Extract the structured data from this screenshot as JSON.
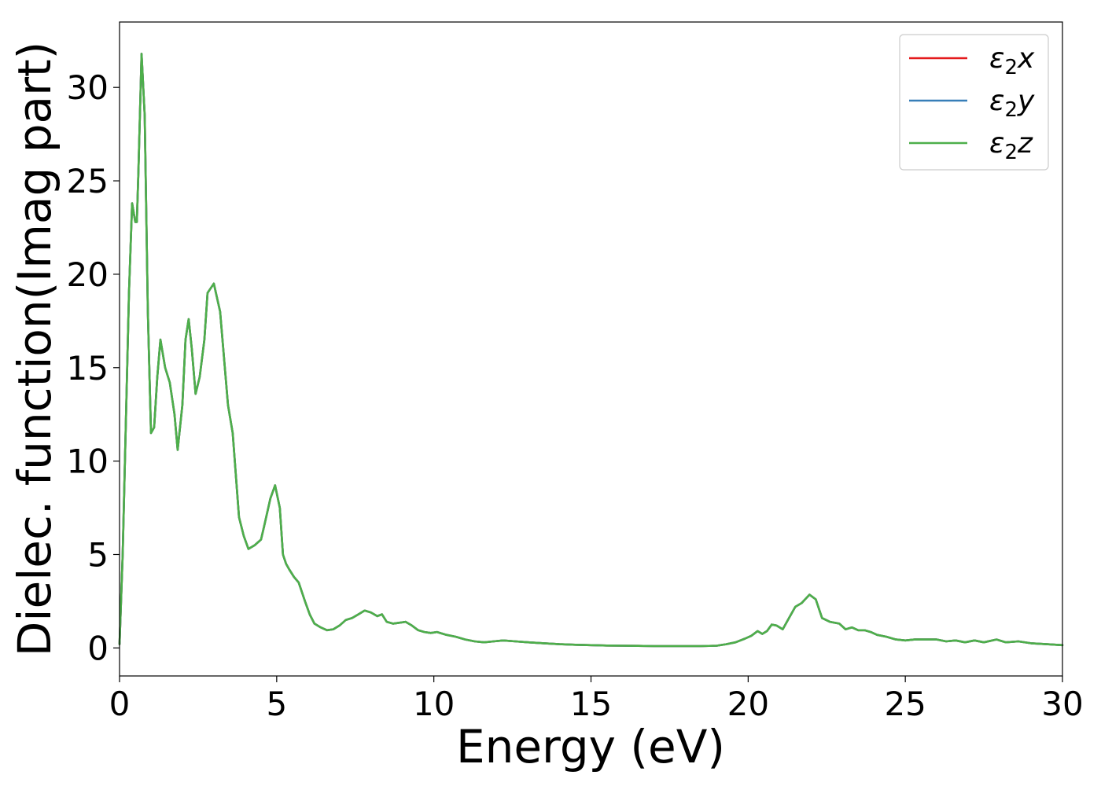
{
  "chart_data": {
    "type": "line",
    "title": "",
    "xlabel": "Energy (eV)",
    "ylabel": "Dielec. function(Imag part)",
    "xlim": [
      0,
      30
    ],
    "ylim": [
      -1.5,
      33.5
    ],
    "xticks": [
      0,
      5,
      10,
      15,
      20,
      25,
      30
    ],
    "yticks": [
      0,
      5,
      10,
      15,
      20,
      25,
      30
    ],
    "grid": false,
    "legend_position": "top-right",
    "legend": [
      {
        "base": "ε",
        "sub": "2",
        "suffix": "x"
      },
      {
        "base": "ε",
        "sub": "2",
        "suffix": "y"
      },
      {
        "base": "ε",
        "sub": "2",
        "suffix": "z"
      }
    ],
    "x": [
      0.0,
      0.1,
      0.2,
      0.3,
      0.4,
      0.5,
      0.55,
      0.6,
      0.7,
      0.8,
      0.9,
      1.0,
      1.1,
      1.2,
      1.3,
      1.45,
      1.6,
      1.75,
      1.85,
      2.0,
      2.1,
      2.2,
      2.3,
      2.42,
      2.55,
      2.7,
      2.8,
      3.0,
      3.2,
      3.35,
      3.45,
      3.6,
      3.8,
      3.95,
      4.1,
      4.3,
      4.5,
      4.6,
      4.8,
      4.95,
      5.1,
      5.2,
      5.3,
      5.4,
      5.55,
      5.7,
      5.9,
      6.05,
      6.2,
      6.4,
      6.6,
      6.8,
      7.0,
      7.2,
      7.4,
      7.6,
      7.8,
      8.0,
      8.2,
      8.35,
      8.5,
      8.7,
      8.9,
      9.1,
      9.3,
      9.5,
      9.7,
      9.9,
      10.1,
      10.4,
      10.7,
      11.0,
      11.3,
      11.6,
      11.9,
      12.2,
      12.6,
      13.0,
      13.5,
      14.0,
      14.5,
      15.0,
      15.5,
      16.0,
      16.5,
      17.0,
      17.5,
      18.0,
      18.5,
      19.0,
      19.3,
      19.6,
      19.9,
      20.1,
      20.3,
      20.45,
      20.6,
      20.75,
      20.9,
      21.1,
      21.3,
      21.5,
      21.7,
      21.95,
      22.15,
      22.35,
      22.6,
      22.9,
      23.1,
      23.3,
      23.5,
      23.7,
      23.9,
      24.1,
      24.4,
      24.7,
      25.0,
      25.3,
      25.6,
      26.0,
      26.3,
      26.6,
      26.9,
      27.2,
      27.5,
      27.9,
      28.2,
      28.6,
      29.0,
      29.5,
      30.0
    ],
    "series": [
      {
        "name": "ε2x",
        "color": "#e41a1c",
        "values": [
          0.2,
          5.0,
          12.0,
          19.0,
          23.8,
          22.8,
          22.8,
          25.5,
          31.8,
          28.5,
          18.0,
          11.5,
          11.8,
          14.5,
          16.5,
          15.0,
          14.2,
          12.5,
          10.6,
          13.0,
          16.5,
          17.6,
          16.0,
          13.6,
          14.5,
          16.5,
          19.0,
          19.5,
          18.0,
          15.0,
          13.0,
          11.5,
          7.0,
          6.0,
          5.3,
          5.5,
          5.8,
          6.5,
          8.0,
          8.7,
          7.5,
          5.0,
          4.5,
          4.2,
          3.8,
          3.5,
          2.5,
          1.8,
          1.3,
          1.1,
          0.95,
          1.0,
          1.2,
          1.5,
          1.6,
          1.8,
          2.0,
          1.9,
          1.7,
          1.8,
          1.4,
          1.3,
          1.35,
          1.4,
          1.2,
          0.95,
          0.85,
          0.8,
          0.85,
          0.7,
          0.6,
          0.45,
          0.35,
          0.3,
          0.35,
          0.4,
          0.35,
          0.3,
          0.25,
          0.2,
          0.17,
          0.15,
          0.13,
          0.12,
          0.11,
          0.1,
          0.1,
          0.1,
          0.1,
          0.12,
          0.2,
          0.3,
          0.5,
          0.65,
          0.9,
          0.75,
          0.9,
          1.25,
          1.2,
          1.0,
          1.6,
          2.2,
          2.4,
          2.85,
          2.6,
          1.6,
          1.4,
          1.3,
          1.0,
          1.1,
          0.95,
          0.95,
          0.85,
          0.7,
          0.6,
          0.45,
          0.4,
          0.45,
          0.45,
          0.45,
          0.35,
          0.4,
          0.3,
          0.4,
          0.3,
          0.45,
          0.3,
          0.35,
          0.25,
          0.2,
          0.15
        ]
      },
      {
        "name": "ε2y",
        "color": "#377eb8",
        "values": [
          0.2,
          5.0,
          12.0,
          19.0,
          23.8,
          22.8,
          22.8,
          25.5,
          31.8,
          28.5,
          18.0,
          11.5,
          11.8,
          14.5,
          16.5,
          15.0,
          14.2,
          12.5,
          10.6,
          13.0,
          16.5,
          17.6,
          16.0,
          13.6,
          14.5,
          16.5,
          19.0,
          19.5,
          18.0,
          15.0,
          13.0,
          11.5,
          7.0,
          6.0,
          5.3,
          5.5,
          5.8,
          6.5,
          8.0,
          8.7,
          7.5,
          5.0,
          4.5,
          4.2,
          3.8,
          3.5,
          2.5,
          1.8,
          1.3,
          1.1,
          0.95,
          1.0,
          1.2,
          1.5,
          1.6,
          1.8,
          2.0,
          1.9,
          1.7,
          1.8,
          1.4,
          1.3,
          1.35,
          1.4,
          1.2,
          0.95,
          0.85,
          0.8,
          0.85,
          0.7,
          0.6,
          0.45,
          0.35,
          0.3,
          0.35,
          0.4,
          0.35,
          0.3,
          0.25,
          0.2,
          0.17,
          0.15,
          0.13,
          0.12,
          0.11,
          0.1,
          0.1,
          0.1,
          0.1,
          0.12,
          0.2,
          0.3,
          0.5,
          0.65,
          0.9,
          0.75,
          0.9,
          1.25,
          1.2,
          1.0,
          1.6,
          2.2,
          2.4,
          2.85,
          2.6,
          1.6,
          1.4,
          1.3,
          1.0,
          1.1,
          0.95,
          0.95,
          0.85,
          0.7,
          0.6,
          0.45,
          0.4,
          0.45,
          0.45,
          0.45,
          0.35,
          0.4,
          0.3,
          0.4,
          0.3,
          0.45,
          0.3,
          0.35,
          0.25,
          0.2,
          0.15
        ]
      },
      {
        "name": "ε2z",
        "color": "#4daf4a",
        "values": [
          0.2,
          5.0,
          12.0,
          19.0,
          23.8,
          22.8,
          22.8,
          25.5,
          31.8,
          28.5,
          18.0,
          11.5,
          11.8,
          14.5,
          16.5,
          15.0,
          14.2,
          12.5,
          10.6,
          13.0,
          16.5,
          17.6,
          16.0,
          13.6,
          14.5,
          16.5,
          19.0,
          19.5,
          18.0,
          15.0,
          13.0,
          11.5,
          7.0,
          6.0,
          5.3,
          5.5,
          5.8,
          6.5,
          8.0,
          8.7,
          7.5,
          5.0,
          4.5,
          4.2,
          3.8,
          3.5,
          2.5,
          1.8,
          1.3,
          1.1,
          0.95,
          1.0,
          1.2,
          1.5,
          1.6,
          1.8,
          2.0,
          1.9,
          1.7,
          1.8,
          1.4,
          1.3,
          1.35,
          1.4,
          1.2,
          0.95,
          0.85,
          0.8,
          0.85,
          0.7,
          0.6,
          0.45,
          0.35,
          0.3,
          0.35,
          0.4,
          0.35,
          0.3,
          0.25,
          0.2,
          0.17,
          0.15,
          0.13,
          0.12,
          0.11,
          0.1,
          0.1,
          0.1,
          0.1,
          0.12,
          0.2,
          0.3,
          0.5,
          0.65,
          0.9,
          0.75,
          0.9,
          1.25,
          1.2,
          1.0,
          1.6,
          2.2,
          2.4,
          2.85,
          2.6,
          1.6,
          1.4,
          1.3,
          1.0,
          1.1,
          0.95,
          0.95,
          0.85,
          0.7,
          0.6,
          0.45,
          0.4,
          0.45,
          0.45,
          0.45,
          0.35,
          0.4,
          0.3,
          0.4,
          0.3,
          0.45,
          0.3,
          0.35,
          0.25,
          0.2,
          0.15
        ]
      }
    ]
  }
}
